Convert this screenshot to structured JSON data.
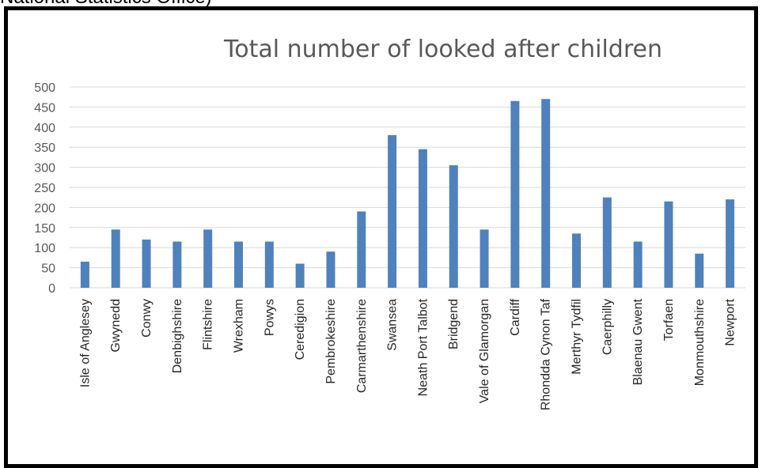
{
  "caption_fragment": "National Statistics Office)",
  "chart_data": {
    "type": "bar",
    "title": "Total number of looked after children",
    "xlabel": "",
    "ylabel": "",
    "ylim": [
      0,
      500
    ],
    "yticks": [
      0,
      50,
      100,
      150,
      200,
      250,
      300,
      350,
      400,
      450,
      500
    ],
    "grid": true,
    "legend": "none",
    "bar_color": "#4F81BD",
    "grid_color": "#D9D9D9",
    "categories": [
      "Isle of Anglesey",
      "Gwynedd",
      "Conwy",
      "Denbighshire",
      "Flintshire",
      "Wrexham",
      "Powys",
      "Ceredigion",
      "Pembrokeshire",
      "Carmarthenshire",
      "Swansea",
      "Neath Port Talbot",
      "Bridgend",
      "Vale of Glamorgan",
      "Cardiff",
      "Rhondda Cynon Taf",
      "Merthyr Tydfil",
      "Caerphilly",
      "Blaenau Gwent",
      "Torfaen",
      "Monmouthshire",
      "Newport"
    ],
    "values": [
      65,
      145,
      120,
      115,
      145,
      115,
      115,
      60,
      90,
      190,
      380,
      345,
      305,
      145,
      465,
      470,
      135,
      225,
      115,
      215,
      85,
      220
    ]
  }
}
